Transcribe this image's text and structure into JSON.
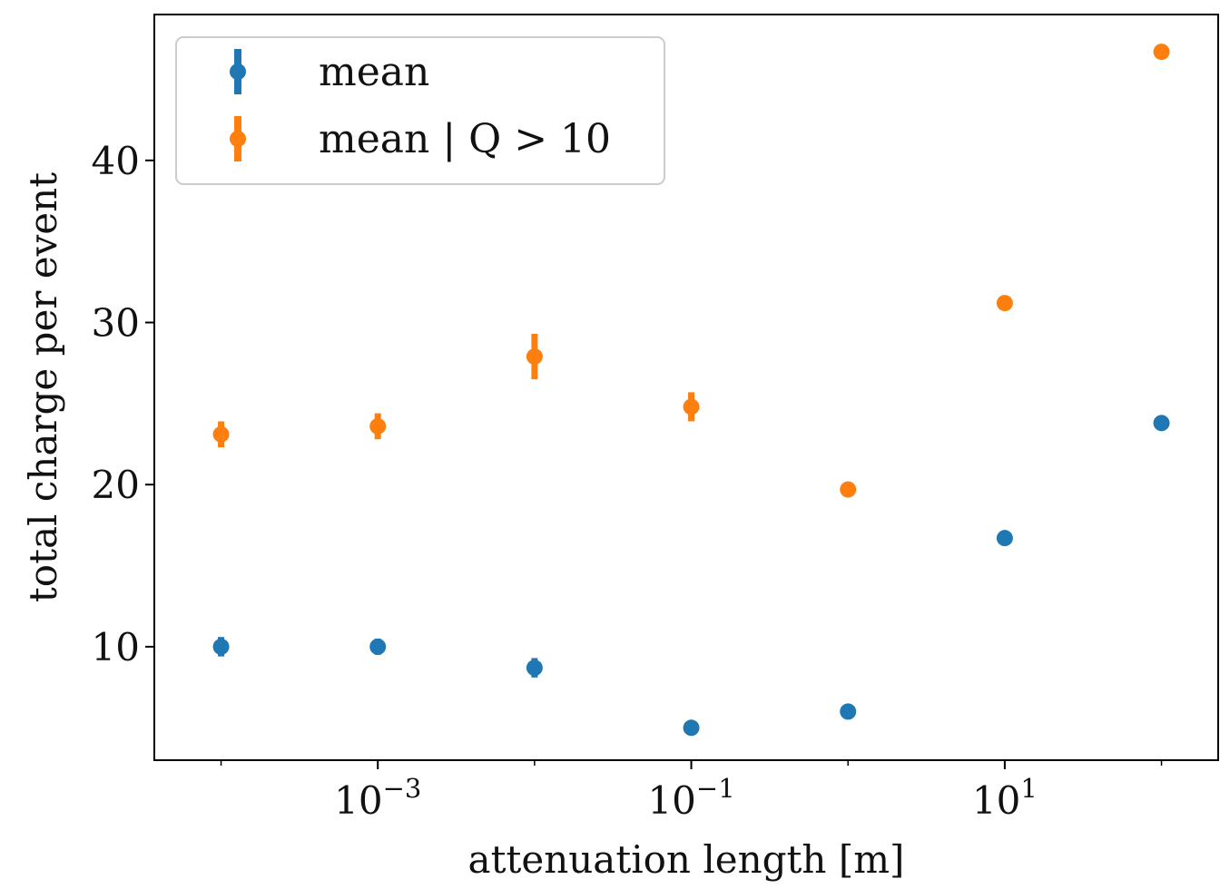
{
  "chart_data": {
    "type": "scatter",
    "title": "",
    "xlabel": "attenuation length [m]",
    "ylabel": "total charge per event",
    "xscale": "log",
    "xlim": [
      3.75e-05,
      230
    ],
    "ylim": [
      3.0,
      49.0
    ],
    "xticks": [
      {
        "value": 0.001,
        "base": "10",
        "exp": "−3"
      },
      {
        "value": 0.1,
        "base": "10",
        "exp": "−1"
      },
      {
        "value": 10,
        "base": "10",
        "exp": "1"
      }
    ],
    "yticks": [
      10,
      20,
      30,
      40
    ],
    "grid": false,
    "legend_location": "upper left",
    "series": [
      {
        "name": "mean",
        "color": "#1f77b4",
        "x": [
          0.0001,
          0.001,
          0.01,
          0.1,
          1,
          10,
          100
        ],
        "y": [
          10.0,
          10.0,
          8.7,
          5.0,
          6.0,
          16.7,
          23.8
        ],
        "yerr": [
          0.6,
          0.5,
          0.6,
          0.2,
          0.2,
          0.2,
          0.2
        ]
      },
      {
        "name": "mean | Q > 10",
        "color": "#ff7f0e",
        "x": [
          0.0001,
          0.001,
          0.01,
          0.1,
          1,
          10,
          100
        ],
        "y": [
          23.1,
          23.6,
          27.9,
          24.8,
          19.7,
          31.2,
          46.7
        ],
        "yerr": [
          0.8,
          0.8,
          1.4,
          0.9,
          0.2,
          0.2,
          0.2
        ]
      }
    ]
  }
}
